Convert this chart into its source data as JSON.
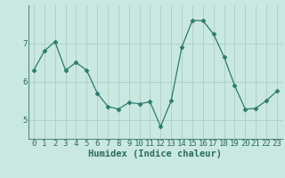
{
  "x": [
    0,
    1,
    2,
    3,
    4,
    5,
    6,
    7,
    8,
    9,
    10,
    11,
    12,
    13,
    14,
    15,
    16,
    17,
    18,
    19,
    20,
    21,
    22,
    23
  ],
  "y": [
    6.3,
    6.8,
    7.05,
    6.3,
    6.5,
    6.3,
    5.7,
    5.35,
    5.28,
    5.45,
    5.42,
    5.47,
    4.82,
    5.5,
    6.9,
    7.6,
    7.6,
    7.25,
    6.65,
    5.9,
    5.28,
    5.3,
    5.5,
    5.75
  ],
  "line_color": "#2e7b6e",
  "marker": "D",
  "marker_size": 2.5,
  "bg_color": "#c8e8e0",
  "grid_color": "#b0ccc5",
  "tick_color": "#2e6b60",
  "axis_color": "#5a8a80",
  "xlabel": "Humidex (Indice chaleur)",
  "ylim": [
    4.5,
    8.0
  ],
  "xlim": [
    -0.5,
    23.5
  ],
  "yticks": [
    5,
    6,
    7
  ],
  "xticks": [
    0,
    1,
    2,
    3,
    4,
    5,
    6,
    7,
    8,
    9,
    10,
    11,
    12,
    13,
    14,
    15,
    16,
    17,
    18,
    19,
    20,
    21,
    22,
    23
  ],
  "font_size": 6.5,
  "xlabel_fontsize": 7.5
}
